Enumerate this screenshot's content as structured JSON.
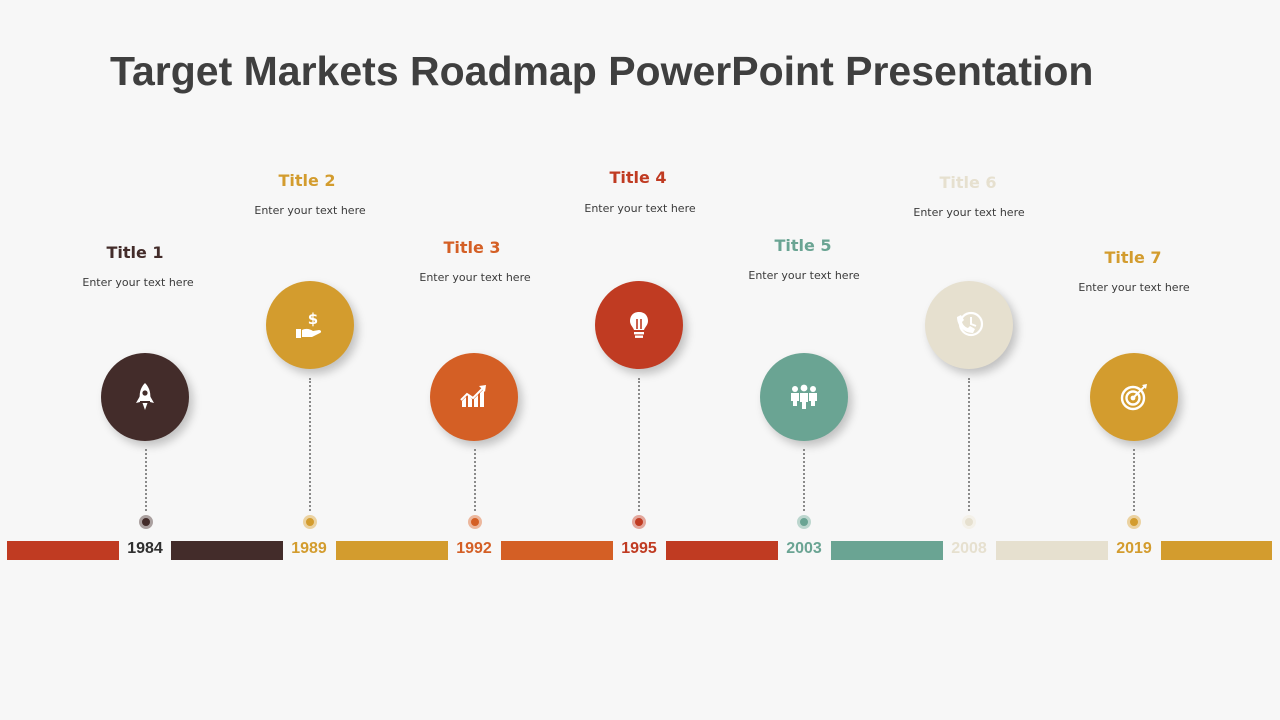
{
  "slide": {
    "title": "Target Markets Roadmap PowerPoint Presentation"
  },
  "milestones": [
    {
      "title": "Title 1",
      "text": "Enter your text here",
      "year": "1984",
      "color": "#432c2a",
      "icon": "rocket-icon"
    },
    {
      "title": "Title 2",
      "text": "Enter your text here",
      "year": "1989",
      "color": "#d39c2e",
      "icon": "money-hand-icon"
    },
    {
      "title": "Title 3",
      "text": "Enter your text here",
      "year": "1992",
      "color": "#d45f25",
      "icon": "growth-chart-icon"
    },
    {
      "title": "Title 4",
      "text": "Enter your text here",
      "year": "1995",
      "color": "#c03b22",
      "icon": "lightbulb-icon"
    },
    {
      "title": "Title 5",
      "text": "Enter your text here",
      "year": "2003",
      "color": "#6aa493",
      "icon": "team-icon"
    },
    {
      "title": "Title 6",
      "text": "Enter your text here",
      "year": "2008",
      "color": "#e6e0cf",
      "icon": "phone-clock-icon"
    },
    {
      "title": "Title 7",
      "text": "Enter your text here",
      "year": "2019",
      "color": "#d39c2e",
      "icon": "target-icon"
    }
  ],
  "timeline_bar_colors": [
    "#c03b22",
    "#432c2a",
    "#d39c2e",
    "#d45f25",
    "#c03b22",
    "#6aa493",
    "#e6e0cf",
    "#d39c2e"
  ]
}
